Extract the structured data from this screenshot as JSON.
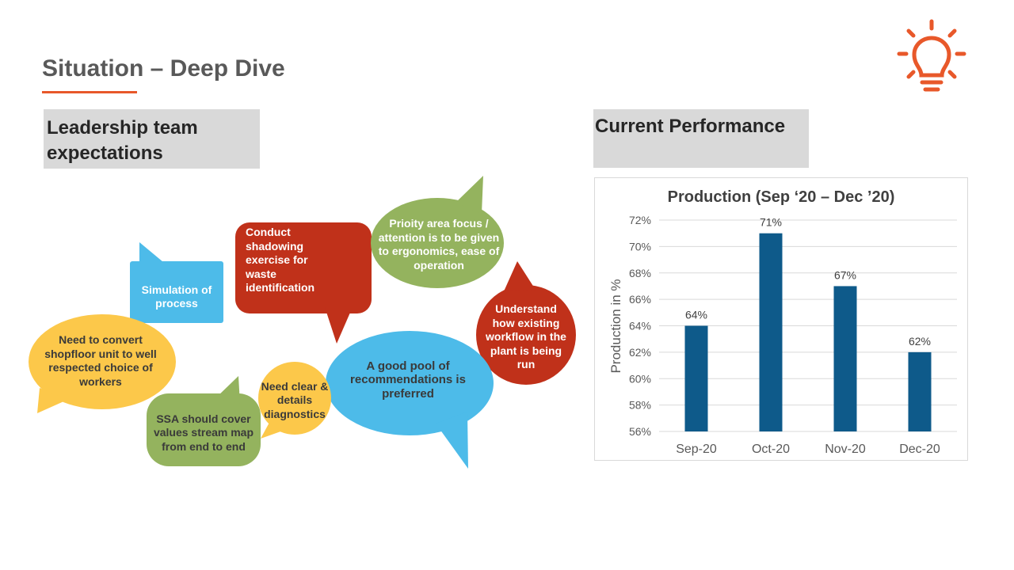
{
  "slide": {
    "title": "Situation – Deep Dive",
    "accent_color": "#e8582a",
    "icon": "lightbulb-icon"
  },
  "left_section": {
    "heading": "Leadership team expectations",
    "bubbles": [
      {
        "id": "simulation",
        "text": "Simulation of process",
        "color": "#4dbbe9"
      },
      {
        "id": "shadowing",
        "text": "Conduct shadowing exercise for waste identification",
        "color": "#c0311a"
      },
      {
        "id": "priority",
        "text": "Prioity area focus / attention is to be given to ergonomics, ease of operation",
        "color": "#94b35e"
      },
      {
        "id": "workflow",
        "text": "Understand how existing workflow in the plant is being run",
        "color": "#c0311a"
      },
      {
        "id": "convert",
        "text": "Need to convert shopfloor unit to well respected choice of workers",
        "color": "#fcc84a"
      },
      {
        "id": "pool",
        "text": "A good pool of recommendations is preferred",
        "color": "#4dbbe9"
      },
      {
        "id": "diagnostics",
        "text": "Need clear & details diagnostics",
        "color": "#fcc84a"
      },
      {
        "id": "ssa",
        "text": "SSA should cover values stream map from end to end",
        "color": "#94b35e"
      }
    ]
  },
  "right_section": {
    "heading": "Current Performance"
  },
  "chart_data": {
    "type": "bar",
    "title": "Production (Sep ‘20 – Dec ’20)",
    "ylabel": "Production in %",
    "xlabel": "",
    "categories": [
      "Sep-20",
      "Oct-20",
      "Nov-20",
      "Dec-20"
    ],
    "values": [
      64,
      71,
      67,
      62
    ],
    "data_labels": [
      "64%",
      "71%",
      "67%",
      "62%"
    ],
    "ylim": [
      56,
      72
    ],
    "yticks": [
      56,
      58,
      60,
      62,
      64,
      66,
      68,
      70,
      72
    ],
    "ytick_labels": [
      "56%",
      "58%",
      "60%",
      "62%",
      "64%",
      "66%",
      "68%",
      "70%",
      "72%"
    ],
    "grid": true,
    "legend": "none",
    "bar_color": "#0e5a8a"
  }
}
